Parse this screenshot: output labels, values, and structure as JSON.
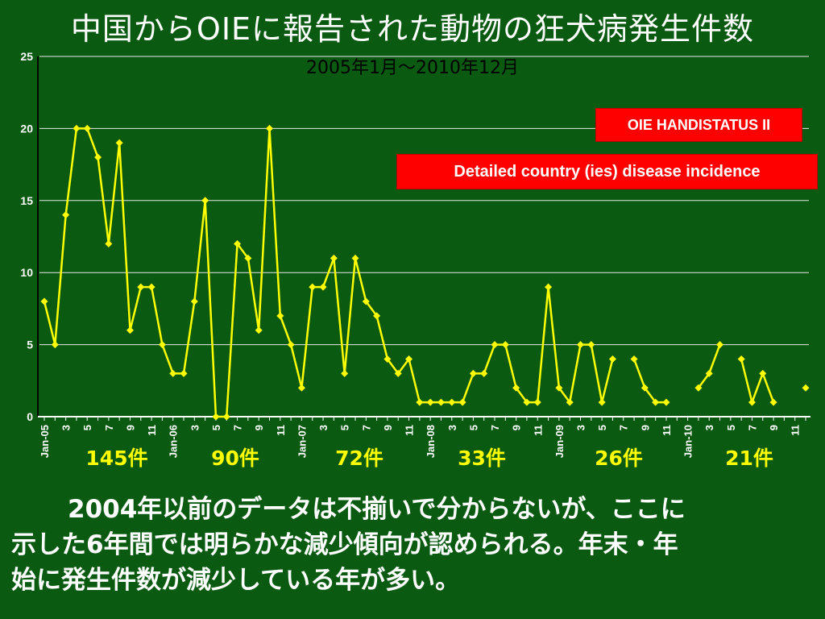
{
  "title": "中国からOIEに報告された動物の狂犬病発生件数",
  "subtitle": "2005年1月～2010年12月",
  "badges": {
    "system": "OIE HANDISTATUS II",
    "detail": "Detailed country (ies) disease incidence"
  },
  "yearly_counts": [
    "145件",
    "90件",
    "72件",
    "33件",
    "26件",
    "21件"
  ],
  "note": {
    "line1": "2004年以前のデータは不揃いで分からないが、ここに",
    "line2": "示した6年間では明らかな減少傾向が認められる。年末・年",
    "line3": "始に発生件数が減少している年が多い。"
  },
  "colors": {
    "background": "#0b5a12",
    "line": "#ffff00",
    "badge": "#ff0000",
    "yearly_counts": "#ffff00"
  },
  "chart_data": {
    "type": "line",
    "title": "中国からOIEに報告された動物の狂犬病発生件数",
    "subtitle": "2005年1月～2010年12月",
    "ylim": [
      0,
      25
    ],
    "yticks": [
      "0",
      "5",
      "10",
      "15",
      "20",
      "25"
    ],
    "grid": true,
    "legend": "none",
    "x_tick_labels": [
      "Jan-05",
      "",
      "3",
      "",
      "5",
      "",
      "7",
      "",
      "9",
      "",
      "11",
      "",
      "Jan-06",
      "",
      "3",
      "",
      "5",
      "",
      "7",
      "",
      "9",
      "",
      "11",
      "",
      "Jan-07",
      "",
      "3",
      "",
      "5",
      "",
      "7",
      "",
      "9",
      "",
      "11",
      "",
      "Jan-08",
      "",
      "3",
      "",
      "5",
      "",
      "7",
      "",
      "9",
      "",
      "11",
      "",
      "Jan-09",
      "",
      "3",
      "",
      "5",
      "",
      "7",
      "",
      "9",
      "",
      "11",
      "",
      "Jan-10",
      "",
      "3",
      "",
      "5",
      "",
      "7",
      "",
      "9",
      "",
      "11",
      ""
    ],
    "series": [
      {
        "values": [
          8,
          5,
          14,
          20,
          20,
          18,
          12,
          19,
          6,
          9,
          9,
          5,
          3,
          3,
          8,
          15,
          0,
          0,
          12,
          11,
          6,
          20,
          7,
          5,
          2,
          9,
          9,
          11,
          3,
          11,
          8,
          7,
          4,
          3,
          4,
          1,
          1,
          1,
          1,
          1,
          3,
          3,
          5,
          5,
          2,
          1,
          1,
          9,
          2,
          1,
          5,
          5,
          1,
          4,
          null,
          4,
          2,
          1,
          1,
          null,
          null,
          2,
          3,
          5,
          null,
          4,
          1,
          3,
          1,
          null,
          null,
          2
        ]
      }
    ]
  }
}
